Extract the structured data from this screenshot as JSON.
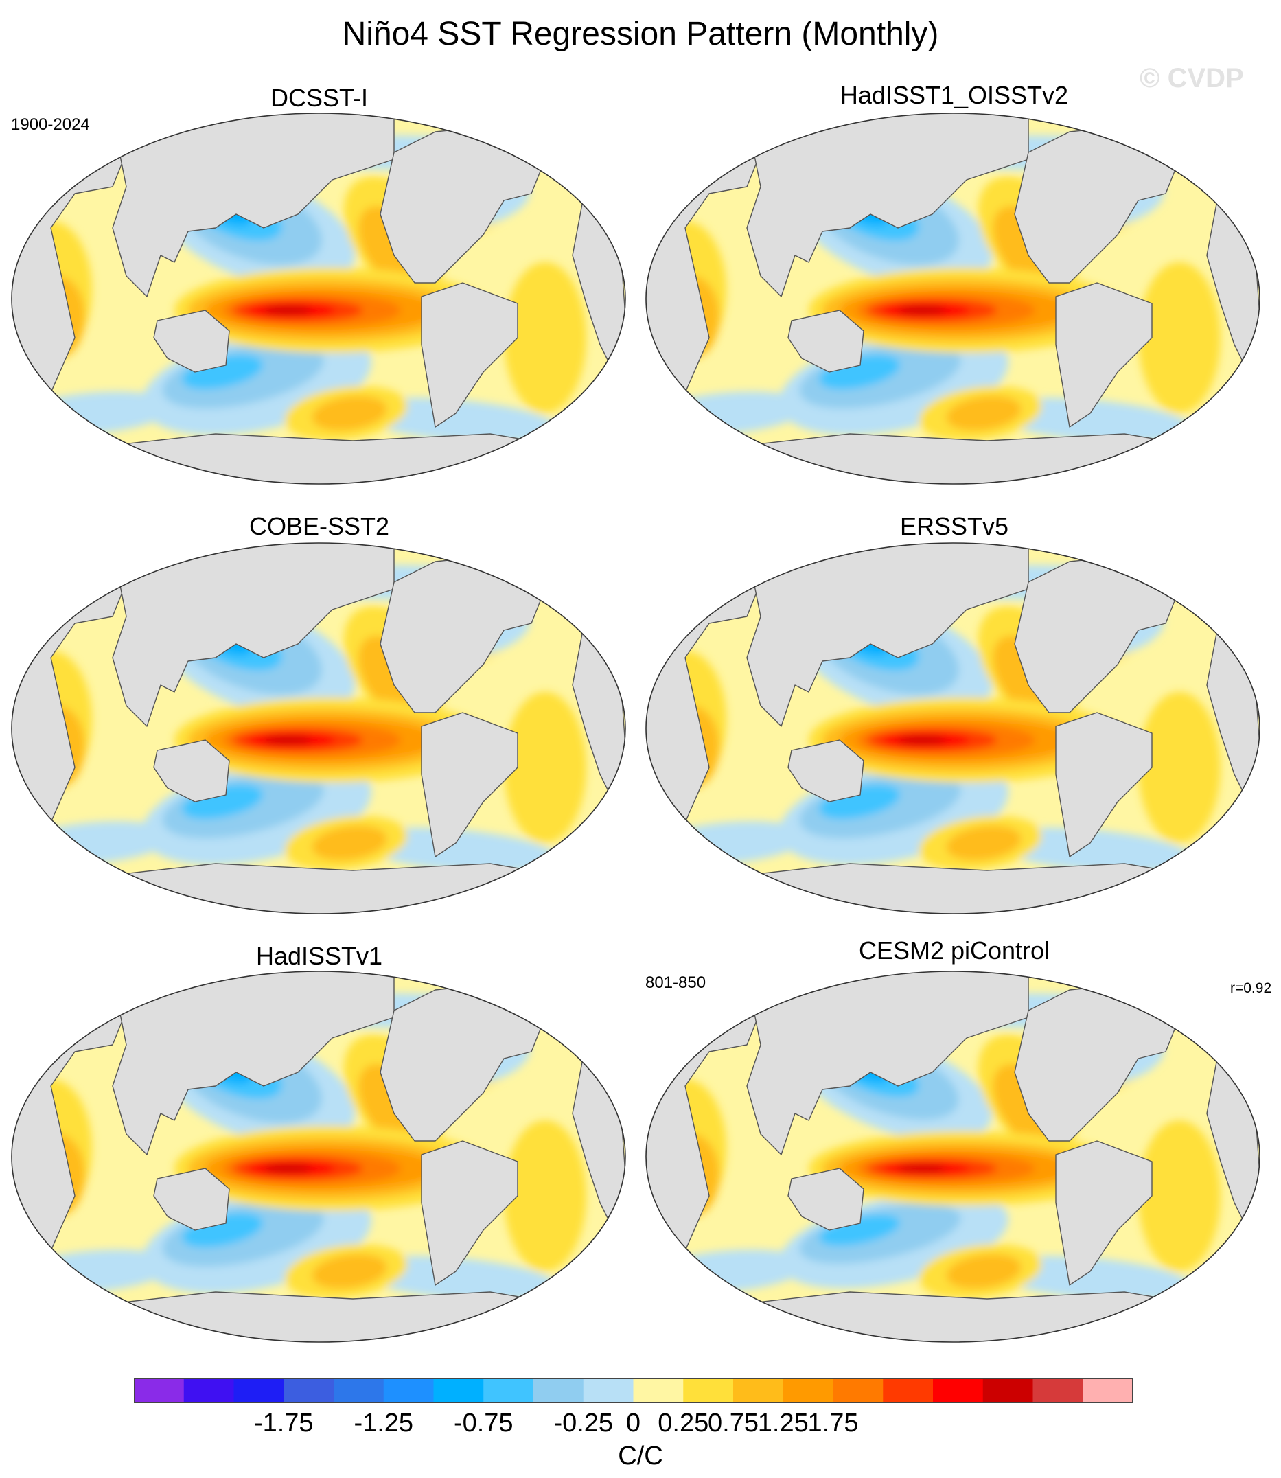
{
  "figure": {
    "title": "Niño4 SST Regression Pattern (Monthly)",
    "watermark": "© CVDP"
  },
  "panels": [
    {
      "title": "DCSST-I",
      "left_note": "1900-2024",
      "right_note": "",
      "variant": 0
    },
    {
      "title": "HadISST1_OISSTv2",
      "left_note": "",
      "right_note": "",
      "variant": 1
    },
    {
      "title": "COBE-SST2",
      "left_note": "",
      "right_note": "",
      "variant": 2
    },
    {
      "title": "ERSSTv5",
      "left_note": "",
      "right_note": "",
      "variant": 3
    },
    {
      "title": "HadISSTv1",
      "left_note": "",
      "right_note": "",
      "variant": 4
    },
    {
      "title": "CESM2 piControl",
      "left_note": "801-850",
      "right_note": "r=0.92",
      "variant": 5
    }
  ],
  "colorbar": {
    "units": "C/C",
    "tick_labels": [
      "-1.75",
      "-1.25",
      "-0.75",
      "-0.25",
      "0",
      "0.25",
      "0.75",
      "1.25",
      "1.75"
    ],
    "tick_values": [
      -1.75,
      -1.25,
      -0.75,
      -0.25,
      0,
      0.25,
      0.75,
      1.25,
      1.75
    ],
    "colors": [
      "#8a2be8",
      "#3f10f2",
      "#1e1ef5",
      "#3c5ee0",
      "#2d77ea",
      "#1e90ff",
      "#00b0ff",
      "#40c4ff",
      "#90cdf0",
      "#b8e0f6",
      "#fff6a3",
      "#ffe03a",
      "#ffbc1a",
      "#ff9a00",
      "#ff7a00",
      "#ff3a00",
      "#ff0000",
      "#cc0000",
      "#d63a3a",
      "#ffb0b0"
    ]
  },
  "colors": {
    "land": "#dedede",
    "coast": "#555555",
    "neutral_ocean": "#fff6a3"
  }
}
